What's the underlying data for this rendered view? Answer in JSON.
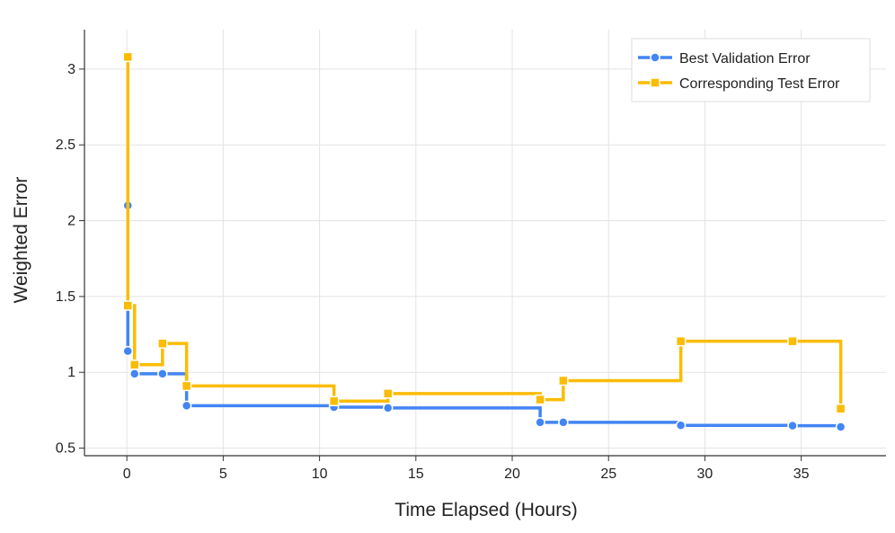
{
  "chart_data": {
    "type": "line",
    "step": "post",
    "xlabel": "Time Elapsed (Hours)",
    "ylabel": "Weighted Error",
    "xlim": [
      -2.2,
      39.4
    ],
    "ylim": [
      0.45,
      3.26
    ],
    "xticks": [
      0,
      5,
      10,
      15,
      20,
      25,
      30,
      35
    ],
    "yticks": [
      0.5,
      1,
      1.5,
      2,
      2.5,
      3
    ],
    "ytick_labels": [
      "0.5",
      "1",
      "1.5",
      "2",
      "2.5",
      "3"
    ],
    "grid": true,
    "legend_position": "top-right",
    "series": [
      {
        "name": "Best Validation Error",
        "color": "#4285f4",
        "marker": "circle",
        "x": [
          0.05,
          0.05,
          0.4,
          1.85,
          3.1,
          10.75,
          13.55,
          21.45,
          22.65,
          28.75,
          34.55,
          37.05
        ],
        "y": [
          2.1,
          1.14,
          0.99,
          0.99,
          0.78,
          0.77,
          0.765,
          0.67,
          0.67,
          0.65,
          0.648,
          0.64
        ]
      },
      {
        "name": "Corresponding Test Error",
        "color": "#fbbc04",
        "marker": "square",
        "x": [
          0.05,
          0.05,
          0.4,
          1.85,
          3.1,
          10.75,
          13.55,
          21.45,
          22.65,
          28.75,
          34.55,
          37.05
        ],
        "y": [
          3.08,
          1.44,
          1.05,
          1.19,
          0.91,
          0.81,
          0.86,
          0.82,
          0.945,
          1.205,
          1.205,
          0.76
        ]
      }
    ]
  }
}
